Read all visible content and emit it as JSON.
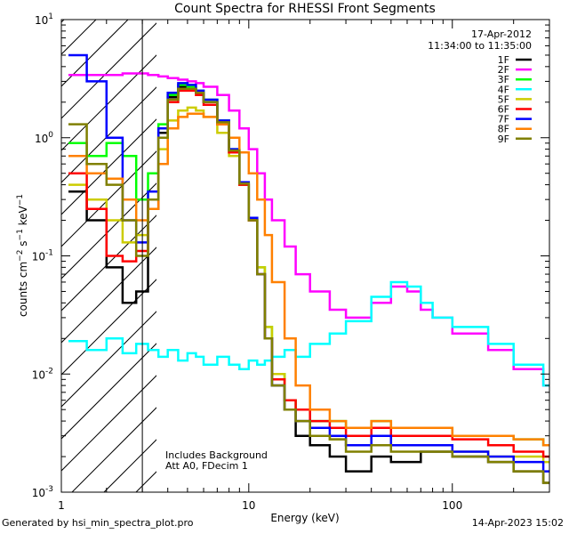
{
  "title": "Count Spectra for RHESSI Front Segments",
  "header": {
    "date": "17-Apr-2012",
    "time_range": "11:34:00 to 11:35:00"
  },
  "notes": {
    "line1": "Includes Background",
    "line2": "Att A0, FDecim 1"
  },
  "footer": {
    "left": "Generated by hsi_min_spectra_plot.pro",
    "right": "14-Apr-2023 15:02"
  },
  "colors": {
    "1F": "#000000",
    "2F": "#ff00ff",
    "3F": "#00ff00",
    "4F": "#00ffff",
    "5F": "#cccc00",
    "6F": "#ff0000",
    "7F": "#0000ff",
    "8F": "#ff8000",
    "9F": "#808000"
  },
  "chart_data": {
    "type": "line",
    "title": "Count Spectra for RHESSI Front Segments",
    "xlabel": "Energy (keV)",
    "ylabel": "counts cm-2 s-1 keV-1",
    "xscale": "log",
    "yscale": "log",
    "xlim": [
      1.2,
      300
    ],
    "ylim": [
      0.001,
      10
    ],
    "x_ticks": [
      {
        "value": 1,
        "label": "1"
      },
      {
        "value": 10,
        "label": "10"
      },
      {
        "value": 100,
        "label": "100"
      }
    ],
    "y_ticks": [
      {
        "value": 0.001,
        "base": "10",
        "exp": "-3"
      },
      {
        "value": 0.01,
        "base": "10",
        "exp": "-2"
      },
      {
        "value": 0.1,
        "base": "10",
        "exp": "-1"
      },
      {
        "value": 1,
        "base": "10",
        "exp": "0"
      },
      {
        "value": 10,
        "base": "10",
        "exp": "1"
      }
    ],
    "hatched_region": [
      1.2,
      3
    ],
    "vertical_line": 3,
    "legend_position": "top-right",
    "series": [
      {
        "name": "1F",
        "x": [
          1.3,
          1.6,
          2,
          2.4,
          2.8,
          3.2,
          3.6,
          4,
          4.5,
          5,
          5.5,
          6,
          7,
          8,
          9,
          10,
          11,
          12,
          13,
          15,
          17,
          20,
          25,
          30,
          40,
          50,
          70,
          100,
          150,
          200,
          280
        ],
        "y": [
          0.35,
          0.2,
          0.08,
          0.04,
          0.05,
          0.25,
          1.1,
          2.2,
          2.7,
          2.6,
          2.4,
          2.0,
          1.3,
          0.75,
          0.4,
          0.2,
          0.07,
          0.02,
          0.008,
          0.005,
          0.003,
          0.0025,
          0.002,
          0.0015,
          0.002,
          0.0018,
          0.0022,
          0.002,
          0.0018,
          0.0015,
          0.0012
        ]
      },
      {
        "name": "2F",
        "x": [
          1.3,
          1.6,
          2,
          2.4,
          2.8,
          3.2,
          3.6,
          4,
          4.5,
          5,
          5.5,
          6,
          7,
          8,
          9,
          10,
          11,
          12,
          13,
          15,
          17,
          20,
          25,
          30,
          40,
          50,
          60,
          70,
          80,
          100,
          150,
          200,
          280
        ],
        "y": [
          3.4,
          3.4,
          3.4,
          3.5,
          3.5,
          3.4,
          3.3,
          3.2,
          3.1,
          3.0,
          2.9,
          2.7,
          2.3,
          1.7,
          1.2,
          0.8,
          0.5,
          0.3,
          0.2,
          0.12,
          0.07,
          0.05,
          0.035,
          0.03,
          0.04,
          0.055,
          0.05,
          0.035,
          0.03,
          0.022,
          0.016,
          0.011,
          0.008
        ]
      },
      {
        "name": "3F",
        "x": [
          1.3,
          1.6,
          2,
          2.4,
          2.8,
          3.2,
          3.6,
          4,
          4.5,
          5,
          5.5,
          6,
          7,
          8,
          9,
          10,
          11,
          12,
          13,
          15,
          17,
          20,
          25,
          30,
          40,
          50,
          70,
          100,
          150,
          200,
          280
        ],
        "y": [
          0.9,
          0.7,
          0.9,
          0.7,
          0.3,
          0.5,
          1.3,
          2.3,
          2.8,
          2.7,
          2.5,
          2.1,
          1.4,
          0.8,
          0.42,
          0.21,
          0.08,
          0.025,
          0.01,
          0.006,
          0.005,
          0.004,
          0.004,
          0.0035,
          0.004,
          0.0035,
          0.0035,
          0.003,
          0.003,
          0.0028,
          0.0025
        ]
      },
      {
        "name": "4F",
        "x": [
          1.3,
          1.6,
          2,
          2.4,
          2.8,
          3.2,
          3.6,
          4,
          4.5,
          5,
          5.5,
          6,
          7,
          8,
          9,
          10,
          11,
          12,
          13,
          15,
          17,
          20,
          25,
          30,
          40,
          50,
          60,
          70,
          80,
          100,
          150,
          200,
          280
        ],
        "y": [
          0.019,
          0.016,
          0.02,
          0.015,
          0.018,
          0.016,
          0.014,
          0.016,
          0.013,
          0.015,
          0.014,
          0.012,
          0.014,
          0.012,
          0.011,
          0.013,
          0.012,
          0.013,
          0.014,
          0.016,
          0.014,
          0.018,
          0.022,
          0.028,
          0.045,
          0.06,
          0.055,
          0.04,
          0.03,
          0.025,
          0.018,
          0.012,
          0.008
        ]
      },
      {
        "name": "5F",
        "x": [
          1.3,
          1.6,
          2,
          2.4,
          2.8,
          3.2,
          3.6,
          4,
          4.5,
          5,
          5.5,
          6,
          7,
          8,
          9,
          10,
          11,
          12,
          13,
          15,
          17,
          20,
          25,
          30,
          40,
          50,
          70,
          100,
          150,
          200,
          280
        ],
        "y": [
          0.4,
          0.3,
          0.2,
          0.13,
          0.15,
          0.3,
          0.8,
          1.4,
          1.7,
          1.8,
          1.7,
          1.5,
          1.1,
          0.7,
          0.4,
          0.2,
          0.08,
          0.025,
          0.01,
          0.005,
          0.004,
          0.003,
          0.0028,
          0.0025,
          0.003,
          0.0025,
          0.0025,
          0.0022,
          0.002,
          0.002,
          0.0018
        ]
      },
      {
        "name": "6F",
        "x": [
          1.3,
          1.6,
          2,
          2.4,
          2.8,
          3.2,
          3.6,
          4,
          4.5,
          5,
          5.5,
          6,
          7,
          8,
          9,
          10,
          11,
          12,
          13,
          15,
          17,
          20,
          25,
          30,
          40,
          50,
          70,
          100,
          150,
          200,
          280
        ],
        "y": [
          0.5,
          0.25,
          0.1,
          0.09,
          0.11,
          0.3,
          1.0,
          2.0,
          2.5,
          2.5,
          2.3,
          1.9,
          1.3,
          0.75,
          0.4,
          0.2,
          0.07,
          0.02,
          0.009,
          0.006,
          0.005,
          0.004,
          0.0035,
          0.003,
          0.0035,
          0.003,
          0.003,
          0.0028,
          0.0025,
          0.0022,
          0.002
        ]
      },
      {
        "name": "7F",
        "x": [
          1.3,
          1.6,
          2,
          2.4,
          2.8,
          3.2,
          3.6,
          4,
          4.5,
          5,
          5.5,
          6,
          7,
          8,
          9,
          10,
          11,
          12,
          13,
          15,
          17,
          20,
          25,
          30,
          40,
          50,
          70,
          100,
          150,
          200,
          280
        ],
        "y": [
          5.0,
          3.0,
          1.0,
          0.2,
          0.13,
          0.35,
          1.2,
          2.4,
          2.9,
          2.8,
          2.5,
          2.1,
          1.4,
          0.8,
          0.42,
          0.21,
          0.07,
          0.02,
          0.008,
          0.005,
          0.004,
          0.0035,
          0.003,
          0.0025,
          0.003,
          0.0025,
          0.0025,
          0.0022,
          0.002,
          0.0018,
          0.0015
        ]
      },
      {
        "name": "8F",
        "x": [
          1.3,
          1.6,
          2,
          2.4,
          2.8,
          3.2,
          3.6,
          4,
          4.5,
          5,
          5.5,
          6,
          7,
          8,
          9,
          10,
          11,
          12,
          13,
          15,
          17,
          20,
          25,
          30,
          40,
          50,
          70,
          100,
          150,
          200,
          280
        ],
        "y": [
          0.7,
          0.5,
          0.45,
          0.3,
          0.2,
          0.25,
          0.6,
          1.2,
          1.5,
          1.6,
          1.6,
          1.5,
          1.3,
          1.0,
          0.75,
          0.5,
          0.3,
          0.15,
          0.06,
          0.02,
          0.008,
          0.005,
          0.004,
          0.0035,
          0.004,
          0.0035,
          0.0035,
          0.003,
          0.003,
          0.0028,
          0.0025
        ]
      },
      {
        "name": "9F",
        "x": [
          1.3,
          1.6,
          2,
          2.4,
          2.8,
          3.2,
          3.6,
          4,
          4.5,
          5,
          5.5,
          6,
          7,
          8,
          9,
          10,
          11,
          12,
          13,
          15,
          17,
          20,
          25,
          30,
          40,
          50,
          70,
          100,
          150,
          200,
          280
        ],
        "y": [
          1.3,
          0.6,
          0.4,
          0.2,
          0.1,
          0.3,
          1.0,
          2.1,
          2.6,
          2.6,
          2.4,
          2.0,
          1.35,
          0.78,
          0.41,
          0.2,
          0.07,
          0.02,
          0.008,
          0.005,
          0.004,
          0.003,
          0.0028,
          0.0022,
          0.0025,
          0.0022,
          0.0022,
          0.002,
          0.0018,
          0.0015,
          0.0012
        ]
      }
    ]
  }
}
